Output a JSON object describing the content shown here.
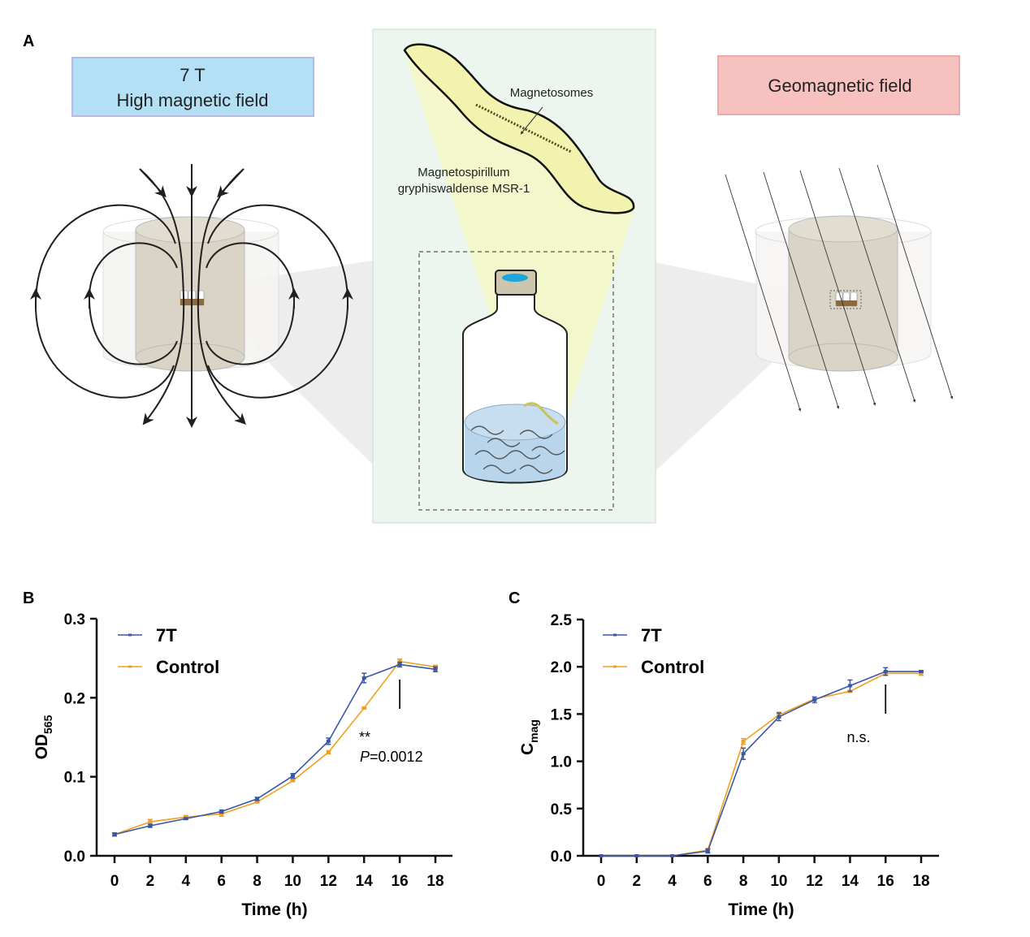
{
  "panel_a": {
    "label": "A",
    "high_field_box": {
      "line1": "7 T",
      "line2": "High magnetic field",
      "color": "#b3e0f5"
    },
    "geo_field_box": {
      "text": "Geomagnetic field",
      "color": "#f7c1c0"
    },
    "bacterium": {
      "organelle_label": "Magnetosomes",
      "species_line1": "Magnetospirillum",
      "species_line2": "gryphiswaldense MSR-1"
    }
  },
  "chart_data": [
    {
      "panel_label": "B",
      "type": "line",
      "xlabel": "Time (h)",
      "ylabel": "OD",
      "ylabel_subscript": "565",
      "x": [
        0,
        2,
        4,
        6,
        8,
        10,
        12,
        14,
        16,
        18
      ],
      "xlim": [
        0,
        18
      ],
      "ylim": [
        0,
        0.3
      ],
      "xticks": [
        "0",
        "2",
        "4",
        "6",
        "8",
        "10",
        "12",
        "14",
        "16",
        "18"
      ],
      "yticks": [
        "0.0",
        "0.1",
        "0.2",
        "0.3"
      ],
      "grid": false,
      "legend_position": "top-left",
      "series": [
        {
          "name": "7T",
          "color": "#3a57a7",
          "values": [
            0.027,
            0.038,
            0.047,
            0.056,
            0.072,
            0.101,
            0.145,
            0.225,
            0.242,
            0.236
          ],
          "error": [
            0.002,
            0.002,
            0.001,
            0.002,
            0.002,
            0.003,
            0.004,
            0.006,
            0.003,
            0.003
          ]
        },
        {
          "name": "Control",
          "color": "#f0a020",
          "values": [
            0.027,
            0.043,
            0.049,
            0.053,
            0.068,
            0.095,
            0.131,
            0.187,
            0.246,
            0.239
          ],
          "error": [
            0.001,
            0.003,
            0.002,
            0.003,
            0.001,
            0.001,
            0.002,
            0.001,
            0.003,
            0.002
          ]
        }
      ],
      "annotation": {
        "x": 16,
        "stars": "**",
        "p_label": "P",
        "p_value": "=0.0012"
      }
    },
    {
      "panel_label": "C",
      "type": "line",
      "xlabel": "Time (h)",
      "ylabel": "C",
      "ylabel_subscript": "mag",
      "x": [
        0,
        2,
        4,
        6,
        8,
        10,
        12,
        14,
        16,
        18
      ],
      "xlim": [
        0,
        18
      ],
      "ylim": [
        0,
        2.5
      ],
      "xticks": [
        "0",
        "2",
        "4",
        "6",
        "8",
        "10",
        "12",
        "14",
        "16",
        "18"
      ],
      "yticks": [
        "0.0",
        "0.5",
        "1.0",
        "1.5",
        "2.0",
        "2.5"
      ],
      "grid": false,
      "legend_position": "top-left",
      "series": [
        {
          "name": "7T",
          "color": "#3a57a7",
          "values": [
            0,
            0,
            0,
            0.05,
            1.08,
            1.47,
            1.65,
            1.8,
            1.95,
            1.95
          ],
          "error": [
            0,
            0,
            0,
            0.02,
            0.06,
            0.04,
            0.03,
            0.06,
            0.04,
            0.01
          ]
        },
        {
          "name": "Control",
          "color": "#f0a020",
          "values": [
            0,
            0,
            0,
            0.06,
            1.21,
            1.49,
            1.66,
            1.74,
            1.93,
            1.93
          ],
          "error": [
            0,
            0,
            0,
            0.02,
            0.03,
            0.03,
            0.02,
            0.01,
            0.02,
            0.02
          ]
        }
      ],
      "annotation": {
        "x": 16,
        "text": "n.s."
      }
    }
  ]
}
